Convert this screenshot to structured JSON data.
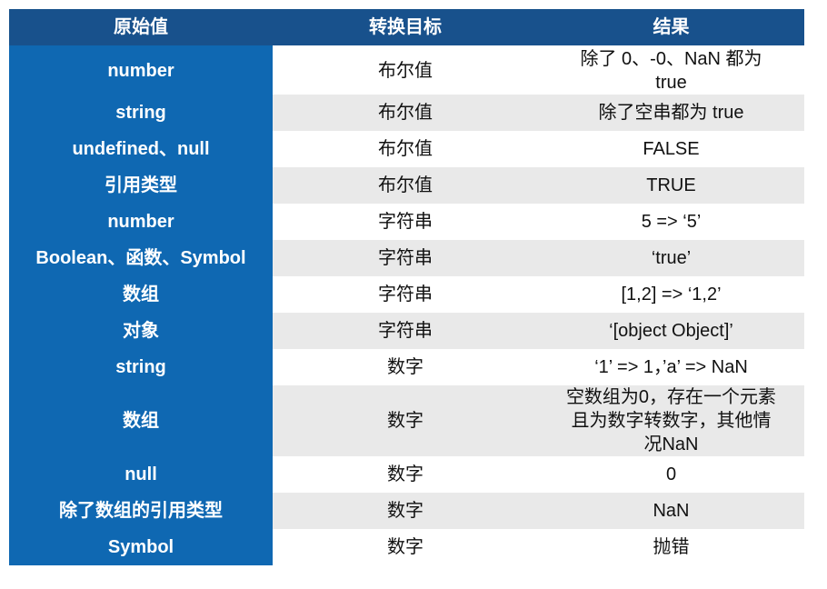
{
  "table": {
    "headers": [
      "原始值",
      "转换目标",
      "结果"
    ],
    "rows": [
      [
        "number",
        "布尔值",
        "除了 0、-0、NaN 都为 true"
      ],
      [
        "string",
        "布尔值",
        "除了空串都为 true"
      ],
      [
        "undefined、null",
        "布尔值",
        "FALSE"
      ],
      [
        "引用类型",
        "布尔值",
        "TRUE"
      ],
      [
        "number",
        "字符串",
        "5 => ‘5’"
      ],
      [
        "Boolean、函数、Symbol",
        "字符串",
        "‘true’"
      ],
      [
        "数组",
        "字符串",
        "[1,2] => ‘1,2’"
      ],
      [
        "对象",
        "字符串",
        "‘[object Object]’"
      ],
      [
        "string",
        "数字",
        "‘1’ => 1，’a’ => NaN"
      ],
      [
        "数组",
        "数字",
        "空数组为0，存在一个元素且为数字转数字，其他情况NaN"
      ],
      [
        "null",
        "数字",
        "0"
      ],
      [
        "除了数组的引用类型",
        "数字",
        "NaN"
      ],
      [
        "Symbol",
        "数字",
        "抛错"
      ]
    ]
  }
}
